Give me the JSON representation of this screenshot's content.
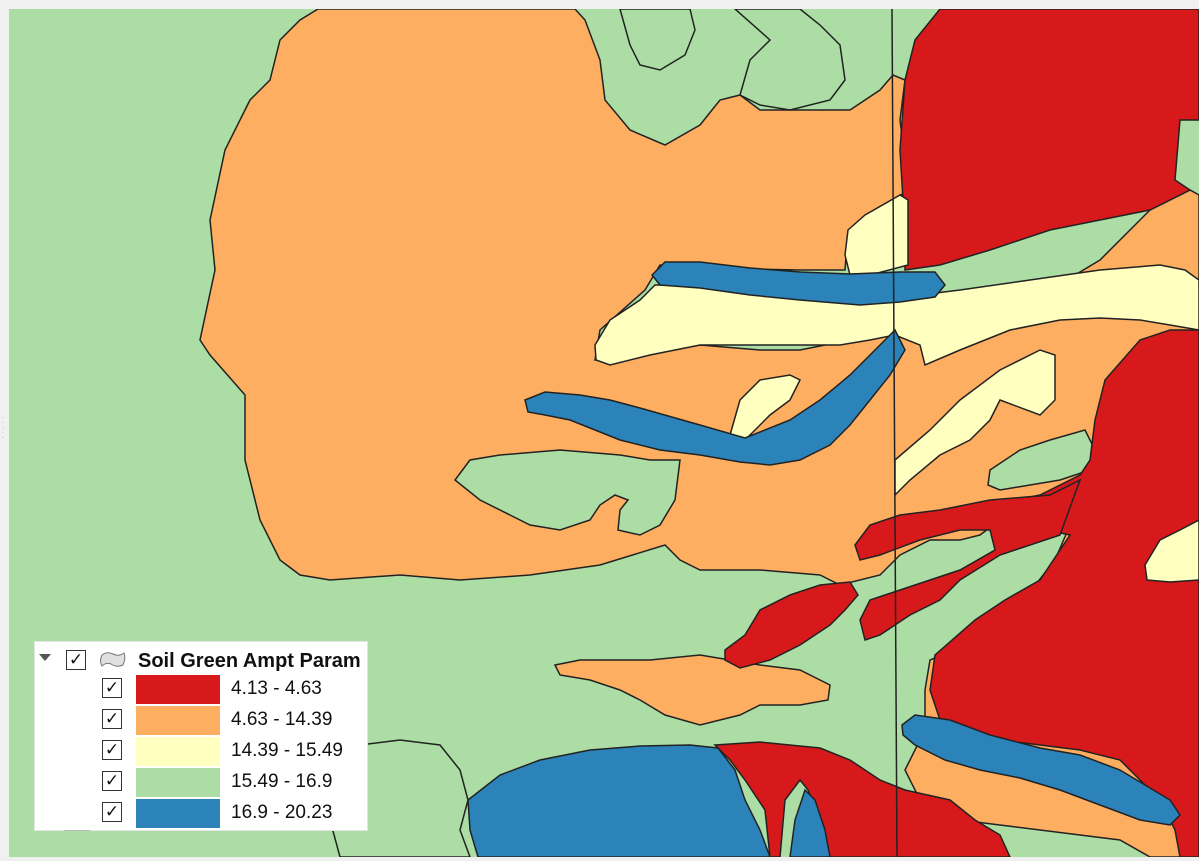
{
  "map": {
    "frame_background": "#f0f0f0",
    "border_color": "#222222",
    "classes": [
      {
        "label": "4.13 - 4.63",
        "color": "#d7191c"
      },
      {
        "label": "4.63 - 14.39",
        "color": "#fdae61"
      },
      {
        "label": "14.39 - 15.49",
        "color": "#ffffbf"
      },
      {
        "label": "15.49 - 16.9",
        "color": "#abdda4"
      },
      {
        "label": "16.9 - 20.23",
        "color": "#2b83ba"
      }
    ]
  },
  "legend": {
    "layer_name": "Soil Green Ampt Param",
    "layer_checked": "✓",
    "layer_icon": "polygon-layer-icon",
    "expand_icon": "collapse-arrow-icon",
    "items": [
      {
        "label": "4.13 - 4.63",
        "checked": "✓",
        "color": "#d7191c"
      },
      {
        "label": "4.63 - 14.39",
        "checked": "✓",
        "color": "#fdae61"
      },
      {
        "label": "14.39 - 15.49",
        "checked": "✓",
        "color": "#ffffbf"
      },
      {
        "label": "15.49 - 16.9",
        "checked": "✓",
        "color": "#abdda4"
      },
      {
        "label": "16.9 - 20.23",
        "checked": "✓",
        "color": "#2b83ba"
      }
    ]
  }
}
